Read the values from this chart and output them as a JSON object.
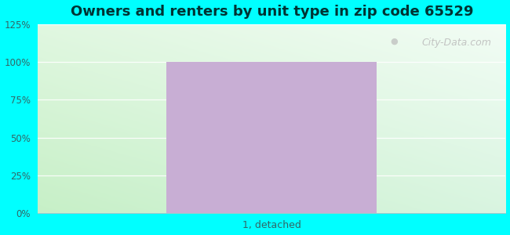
{
  "title": "Owners and renters by unit type in zip code 65529",
  "title_fontsize": 13,
  "categories": [
    "1, detached"
  ],
  "values": [
    100
  ],
  "bar_color": "#c8aed4",
  "bar_width": 0.45,
  "ylim": [
    0,
    125
  ],
  "yticks": [
    0,
    25,
    50,
    75,
    100,
    125
  ],
  "ytick_labels": [
    "0%",
    "25%",
    "50%",
    "75%",
    "100%",
    "125%"
  ],
  "outer_bg": "#00ffff",
  "watermark": "City-Data.com",
  "title_color": "#003333",
  "tick_color": "#336666"
}
